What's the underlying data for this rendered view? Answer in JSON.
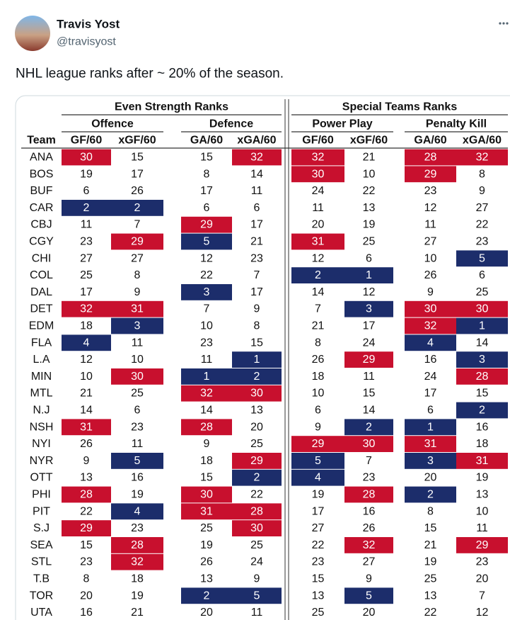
{
  "tweet": {
    "author": {
      "name": "Travis Yost",
      "handle": "@travisyost"
    },
    "text": "NHL league ranks after ~ 20% of the season."
  },
  "table": {
    "groups": [
      {
        "title": "Even Strength Ranks",
        "subgroups": [
          "Offence",
          "Defence"
        ]
      },
      {
        "title": "Special Teams Ranks",
        "subgroups": [
          "Power Play",
          "Penalty Kill"
        ]
      }
    ],
    "columns": [
      "Team",
      "GF/60",
      "xGF/60",
      "GA/60",
      "xGA/60",
      "GF/60",
      "xGF/60",
      "GA/60",
      "xGA/60"
    ],
    "rows": [
      [
        "ANA",
        30,
        15,
        15,
        32,
        32,
        21,
        28,
        32
      ],
      [
        "BOS",
        19,
        17,
        8,
        14,
        30,
        10,
        29,
        8
      ],
      [
        "BUF",
        6,
        26,
        17,
        11,
        24,
        22,
        23,
        9
      ],
      [
        "CAR",
        2,
        2,
        6,
        6,
        11,
        13,
        12,
        27
      ],
      [
        "CBJ",
        11,
        7,
        29,
        17,
        20,
        19,
        11,
        22
      ],
      [
        "CGY",
        23,
        29,
        5,
        21,
        31,
        25,
        27,
        23
      ],
      [
        "CHI",
        27,
        27,
        12,
        23,
        12,
        6,
        10,
        5
      ],
      [
        "COL",
        25,
        8,
        22,
        7,
        2,
        1,
        26,
        6
      ],
      [
        "DAL",
        17,
        9,
        3,
        17,
        14,
        12,
        9,
        25
      ],
      [
        "DET",
        32,
        31,
        7,
        9,
        7,
        3,
        30,
        30
      ],
      [
        "EDM",
        18,
        3,
        10,
        8,
        21,
        17,
        32,
        1
      ],
      [
        "FLA",
        4,
        11,
        23,
        15,
        8,
        24,
        4,
        14
      ],
      [
        "L.A",
        12,
        10,
        11,
        1,
        26,
        29,
        16,
        3
      ],
      [
        "MIN",
        10,
        30,
        1,
        2,
        18,
        11,
        24,
        28
      ],
      [
        "MTL",
        21,
        25,
        32,
        30,
        10,
        15,
        17,
        15
      ],
      [
        "N.J",
        14,
        6,
        14,
        13,
        6,
        14,
        6,
        2
      ],
      [
        "NSH",
        31,
        23,
        28,
        20,
        9,
        2,
        1,
        16
      ],
      [
        "NYI",
        26,
        11,
        9,
        25,
        29,
        30,
        31,
        18
      ],
      [
        "NYR",
        9,
        5,
        18,
        29,
        5,
        7,
        3,
        31
      ],
      [
        "OTT",
        13,
        16,
        15,
        2,
        4,
        23,
        20,
        19
      ],
      [
        "PHI",
        28,
        19,
        30,
        22,
        19,
        28,
        2,
        13
      ],
      [
        "PIT",
        22,
        4,
        31,
        28,
        17,
        16,
        8,
        10
      ],
      [
        "S.J",
        29,
        23,
        25,
        30,
        27,
        26,
        15,
        11
      ],
      [
        "SEA",
        15,
        28,
        19,
        25,
        22,
        32,
        21,
        29
      ],
      [
        "STL",
        23,
        32,
        26,
        24,
        23,
        27,
        19,
        23
      ],
      [
        "T.B",
        8,
        18,
        13,
        9,
        15,
        9,
        25,
        20
      ],
      [
        "TOR",
        20,
        19,
        2,
        5,
        13,
        5,
        13,
        7
      ],
      [
        "UTA",
        16,
        21,
        20,
        11,
        25,
        20,
        22,
        12
      ]
    ],
    "highlight": {
      "low_max": 5,
      "low_color": "#1c2d6b",
      "high_min": 28,
      "high_color": "#c8102e"
    }
  }
}
